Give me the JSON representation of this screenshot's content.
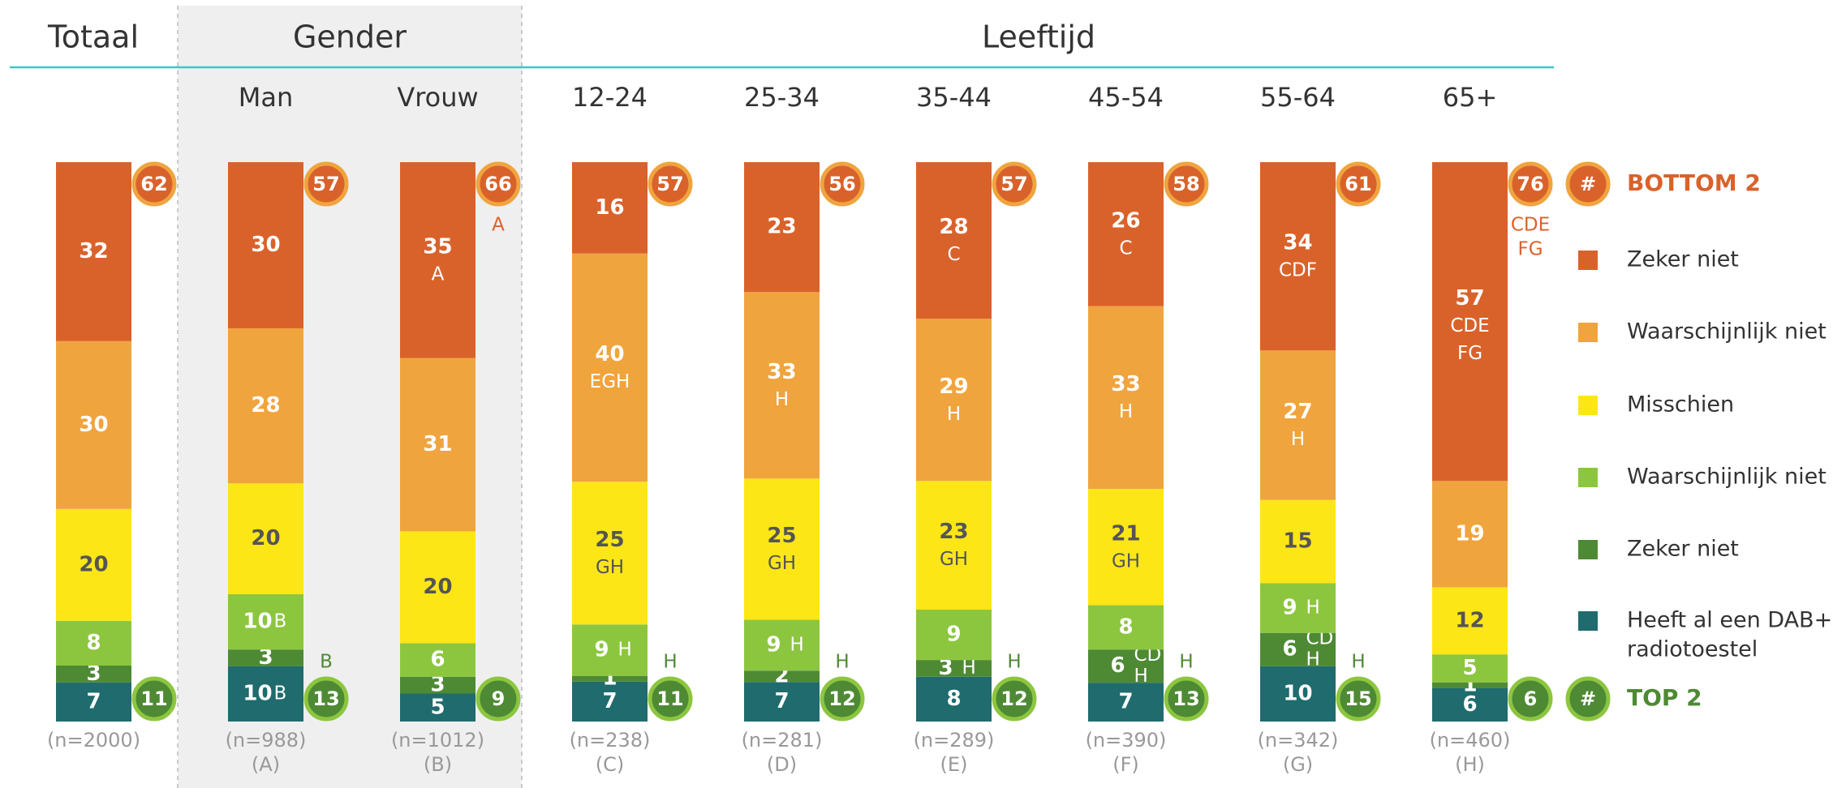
{
  "chart_data": {
    "type": "stacked-bar",
    "header": [
      "Totaal",
      "Gender",
      "Leeftijd"
    ],
    "categories": [
      null,
      "Man",
      "Vrouw",
      "12-24",
      "25-34",
      "35-44",
      "45-54",
      "55-64",
      "65+"
    ],
    "sample_sizes": [
      "(n=2000)",
      "(n=988)",
      "(n=1012)",
      "(n=238)",
      "(n=281)",
      "(n=289)",
      "(n=390)",
      "(n=342)",
      "(n=460)"
    ],
    "column_letters": [
      null,
      "(A)",
      "(B)",
      "(C)",
      "(D)",
      "(E)",
      "(F)",
      "(G)",
      "(H)"
    ],
    "series": [
      {
        "name": [
          "Zeker niet"
        ],
        "color": "#d9622b",
        "text_color": "#ffffff",
        "values": [
          32,
          30,
          35,
          16,
          23,
          28,
          26,
          34,
          57
        ],
        "sig": [
          null,
          null,
          [
            "A"
          ],
          null,
          null,
          [
            "C"
          ],
          [
            "C"
          ],
          [
            "CDF"
          ],
          [
            "CDE",
            "FG"
          ]
        ]
      },
      {
        "name": [
          "Waarschijnlijk niet"
        ],
        "color": "#f0a43e",
        "text_color": "#ffffff",
        "values": [
          30,
          28,
          31,
          40,
          33,
          29,
          33,
          27,
          19
        ],
        "sig": [
          null,
          null,
          null,
          [
            "EGH"
          ],
          [
            "H"
          ],
          [
            "H"
          ],
          [
            "H"
          ],
          [
            "H"
          ],
          null
        ]
      },
      {
        "name": [
          "Misschien"
        ],
        "color": "#fde616",
        "text_color": "#555555",
        "values": [
          20,
          20,
          20,
          25,
          25,
          23,
          21,
          15,
          12
        ],
        "sig": [
          null,
          null,
          null,
          [
            "GH"
          ],
          [
            "GH"
          ],
          [
            "GH"
          ],
          [
            "GH"
          ],
          null,
          null
        ]
      },
      {
        "name": [
          "Waarschijnlijk niet"
        ],
        "color": "#8cc63f",
        "text_color": "#ffffff",
        "values": [
          8,
          10,
          6,
          9,
          9,
          9,
          8,
          9,
          5
        ],
        "sig": [
          null,
          [
            "B"
          ],
          null,
          [
            "H"
          ],
          [
            "H"
          ],
          null,
          null,
          [
            "H"
          ],
          null
        ]
      },
      {
        "name": [
          "Zeker niet"
        ],
        "color": "#4e8a34",
        "text_color": "#ffffff",
        "values": [
          3,
          3,
          3,
          1,
          2,
          3,
          6,
          6,
          1
        ],
        "sig": [
          null,
          null,
          null,
          null,
          null,
          [
            "H"
          ],
          [
            "CD",
            "H"
          ],
          [
            "CD",
            "H"
          ],
          null
        ]
      },
      {
        "name": [
          "Heeft al een DAB+",
          "radiotoestel"
        ],
        "color": "#1f6b6e",
        "text_color": "#ffffff",
        "values": [
          7,
          10,
          5,
          7,
          7,
          8,
          7,
          10,
          6
        ],
        "sig": [
          null,
          [
            "B"
          ],
          null,
          null,
          null,
          null,
          null,
          null,
          null
        ]
      }
    ],
    "bottom2": {
      "label": "BOTTOM 2",
      "symbol": "#",
      "color": "#d9622b",
      "ring": "#f0a43e",
      "values": [
        62,
        57,
        66,
        57,
        56,
        57,
        58,
        61,
        76
      ],
      "sig": [
        null,
        null,
        [
          "A"
        ],
        null,
        null,
        null,
        null,
        null,
        [
          "CDE",
          "FG"
        ]
      ]
    },
    "top2": {
      "label": "TOP 2",
      "symbol": "#",
      "color": "#4e8a34",
      "ring": "#8cc63f",
      "values": [
        11,
        13,
        9,
        11,
        12,
        12,
        13,
        15,
        6
      ],
      "sig": [
        null,
        [
          "B"
        ],
        null,
        [
          "H"
        ],
        [
          "H"
        ],
        [
          "H"
        ],
        [
          "H"
        ],
        [
          "H"
        ],
        null
      ]
    }
  }
}
